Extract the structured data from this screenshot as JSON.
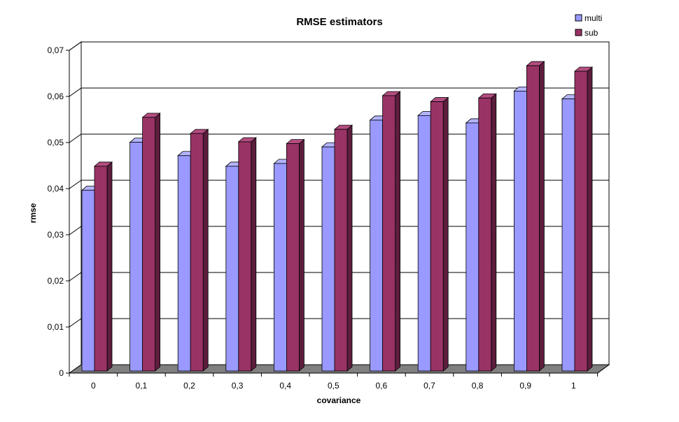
{
  "chart_data": {
    "type": "bar",
    "title": "RMSE estimators",
    "xlabel": "covariance",
    "ylabel": "rmse",
    "categories": [
      "0",
      "0,1",
      "0,2",
      "0,3",
      "0,4",
      "0,5",
      "0,6",
      "0,7",
      "0,8",
      "0,9",
      "1"
    ],
    "series": [
      {
        "name": "multi",
        "values": [
          0.0392,
          0.0496,
          0.0467,
          0.0444,
          0.045,
          0.0486,
          0.0544,
          0.0554,
          0.0538,
          0.0607,
          0.059
        ]
      },
      {
        "name": "sub",
        "values": [
          0.0444,
          0.055,
          0.0515,
          0.0497,
          0.0493,
          0.0524,
          0.0597,
          0.0584,
          0.0592,
          0.0662,
          0.065
        ]
      }
    ],
    "ylim": [
      0,
      0.07
    ],
    "yticks": [
      "0",
      "0,01",
      "0,02",
      "0,03",
      "0,04",
      "0,05",
      "0,06",
      "0,07"
    ],
    "grid": true,
    "legend": "top-right",
    "style": "3d-clustered-column",
    "colors": {
      "multi_front": "#9999ff",
      "multi_top": "#b4b4ff",
      "multi_side": "#5a5ac0",
      "sub_front": "#993366",
      "sub_top": "#b34d80",
      "sub_side": "#5c1e3d",
      "floor": "#808080",
      "grid": "#000000"
    }
  }
}
